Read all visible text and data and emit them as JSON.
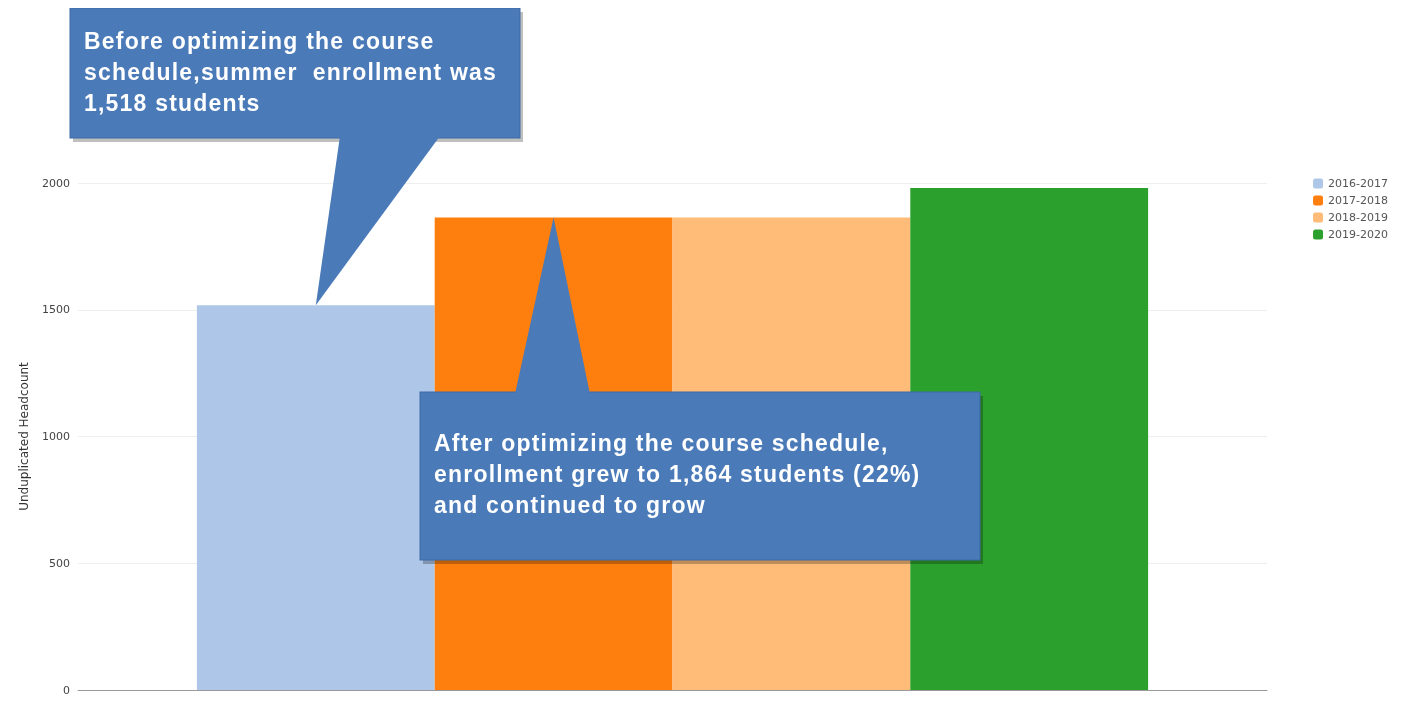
{
  "chart_data": {
    "type": "bar",
    "ylabel": "Unduplicated Headcount",
    "categories": [
      null
    ],
    "series": [
      {
        "name": "2016-2017",
        "color": "#aec7e8",
        "values": [
          1518
        ]
      },
      {
        "name": "2017-2018",
        "color": "#ff7f0e",
        "values": [
          1864
        ]
      },
      {
        "name": "2018-2019",
        "color": "#ffbb78",
        "values": [
          1864
        ]
      },
      {
        "name": "2019-2020",
        "color": "#2ca02c",
        "values": [
          1980
        ]
      }
    ],
    "ylim": [
      0,
      2000
    ],
    "yticks": [
      0,
      500,
      1000,
      1500,
      2000
    ],
    "grid": "y",
    "legend": "top right",
    "annotations": [
      "Before optimizing the course schedule,summer  enrollment was 1,518 students",
      "After optimizing the course schedule, enrollment grew to 1,864 students (22%) and continued to grow"
    ]
  }
}
